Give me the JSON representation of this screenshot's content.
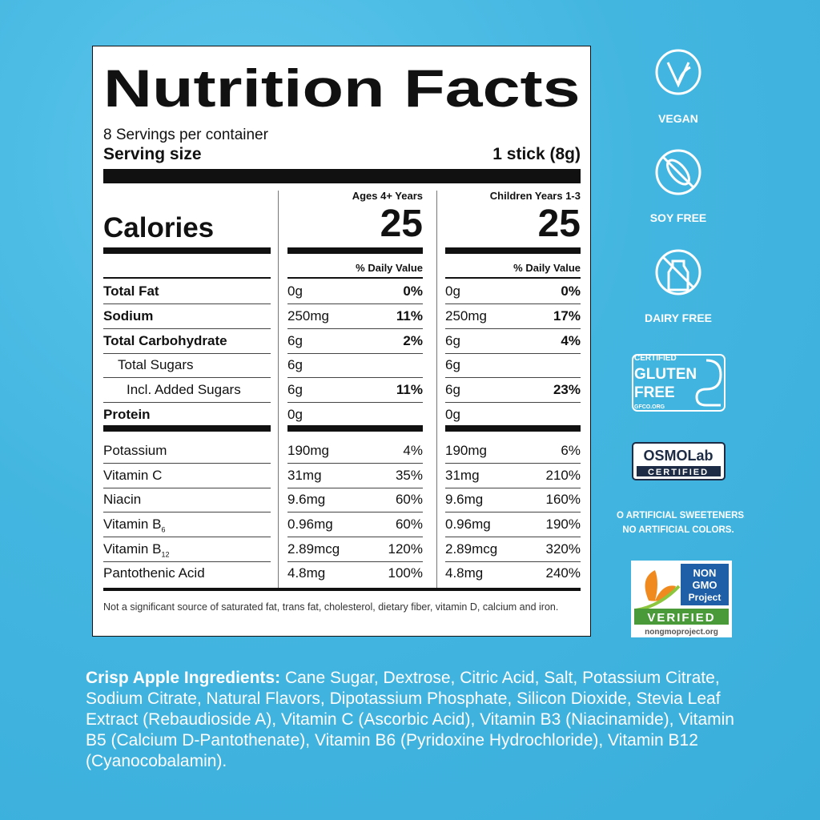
{
  "label": {
    "title": "Nutrition Facts",
    "servings": "8 Servings per container",
    "serving_size_label": "Serving size",
    "serving_size": "1 stick (8g)",
    "calories_label": "Calories",
    "columns": [
      {
        "header": "Ages 4+ Years",
        "calories": "25",
        "dv_header": "% Daily Value"
      },
      {
        "header": "Children Years 1-3",
        "calories": "25",
        "dv_header": "% Daily Value"
      }
    ],
    "rows": [
      {
        "name": "Total Fat",
        "values": [
          [
            "0g",
            "0%"
          ],
          [
            "0g",
            "0%"
          ]
        ]
      },
      {
        "name": "Sodium",
        "values": [
          [
            "250mg",
            "11%"
          ],
          [
            "250mg",
            "17%"
          ]
        ]
      },
      {
        "name": "Total Carbohydrate",
        "values": [
          [
            "6g",
            "2%"
          ],
          [
            "6g",
            "4%"
          ]
        ]
      },
      {
        "name": "Total Sugars",
        "values": [
          [
            "6g"
          ],
          [
            "6g"
          ]
        ]
      },
      {
        "name": "Incl. Added Sugars",
        "values": [
          [
            "6g",
            "11%"
          ],
          [
            "6g",
            "23%"
          ]
        ]
      },
      {
        "name": "Protein",
        "values": [
          [
            "0g"
          ],
          [
            "0g"
          ]
        ]
      }
    ],
    "vitamins": [
      {
        "name": "Potassium",
        "values": [
          [
            "190mg",
            "4%"
          ],
          [
            "190mg",
            "6%"
          ]
        ]
      },
      {
        "name": "Vitamin C",
        "values": [
          [
            "31mg",
            "35%"
          ],
          [
            "31mg",
            "210%"
          ]
        ]
      },
      {
        "name": "Niacin",
        "values": [
          [
            "9.6mg",
            "60%"
          ],
          [
            "9.6mg",
            "160%"
          ]
        ]
      },
      {
        "name": "Vitamin B",
        "sub": "6",
        "values": [
          [
            "0.96mg",
            "60%"
          ],
          [
            "0.96mg",
            "190%"
          ]
        ]
      },
      {
        "name": "Vitamin B",
        "sub": "12",
        "values": [
          [
            "2.89mcg",
            "120%"
          ],
          [
            "2.89mcg",
            "320%"
          ]
        ]
      },
      {
        "name": "Pantothenic Acid",
        "values": [
          [
            "4.8mg",
            "100%"
          ],
          [
            "4.8mg",
            "240%"
          ]
        ]
      }
    ],
    "footnote": "Not a significant source of saturated fat, trans fat, cholesterol, dietary fiber, vitamin D, calcium and iron."
  },
  "badges": {
    "vegan": "VEGAN",
    "soy_free": "SOY FREE",
    "dairy_free": "DAIRY FREE",
    "gluten": {
      "certified": "CERTIFIED",
      "gluten": "GLUTEN",
      "free": "FREE",
      "site": "GFCO.ORG"
    },
    "osmolab": {
      "name": "OSMOLab",
      "certified": "CERTIFIED"
    },
    "claims": [
      "NO ARTIFICIAL SWEETENERS.",
      "NO ARTIFICIAL COLORS."
    ],
    "nongmo": {
      "non": "NON",
      "gmo": "GMO",
      "project": "Project",
      "verified": "VERIFIED",
      "site": "nongmoproject.org"
    }
  },
  "ingredients": {
    "heading": "Crisp Apple Ingredients:",
    "text": "Cane Sugar, Dextrose, Citric Acid, Salt, Potassium Citrate, Sodium Citrate, Natural Flavors, Dipotassium Phosphate, Silicon Dioxide, Stevia Leaf Extract (Rebaudioside A), Vitamin C (Ascorbic Acid), Vitamin B3 (Niacinamide), Vitamin B5 (Calcium D-Pantothenate), Vitamin B6 (Pyridoxine Hydrochloride), Vitamin B12 (Cyanocobalamin)."
  }
}
